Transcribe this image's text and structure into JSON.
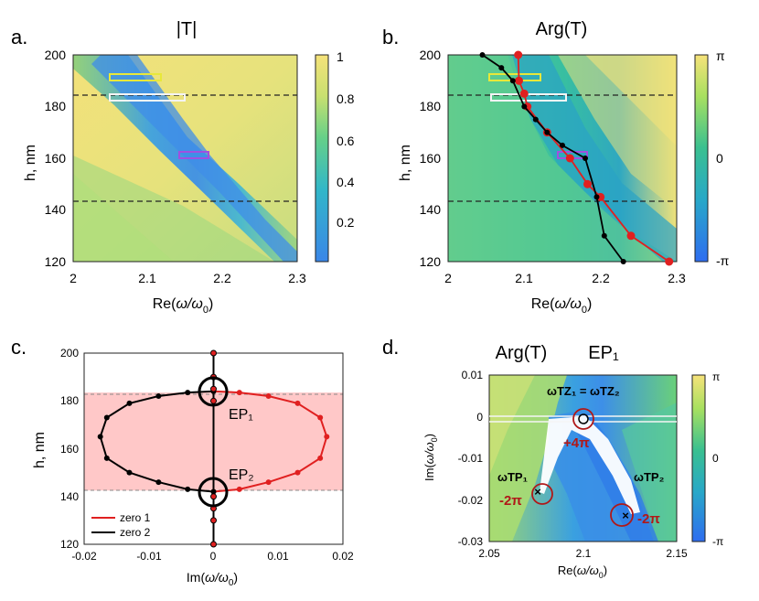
{
  "panels": {
    "a": {
      "label": "a.",
      "title": "|T|",
      "xlabel_prefix": "Re(",
      "xlabel_omega": "ω/ω",
      "xlabel_sub": "0",
      "xlabel_suffix": ")",
      "ylabel": "h, nm",
      "x_ticks": [
        "2",
        "2.1",
        "2.2",
        "2.3"
      ],
      "y_ticks": [
        "120",
        "140",
        "160",
        "180",
        "200"
      ],
      "colorbar_ticks": [
        "0.2",
        "0.4",
        "0.6",
        "0.8",
        "1"
      ]
    },
    "b": {
      "label": "b.",
      "title": "Arg(T)",
      "xlabel_prefix": "Re(",
      "xlabel_omega": "ω/ω",
      "xlabel_sub": "0",
      "xlabel_suffix": ")",
      "ylabel": "h, nm",
      "x_ticks": [
        "2",
        "2.1",
        "2.2",
        "2.3"
      ],
      "y_ticks": [
        "120",
        "140",
        "160",
        "180",
        "200"
      ],
      "colorbar_ticks": [
        "π",
        "0",
        "-π"
      ]
    },
    "c": {
      "label": "c.",
      "ylabel": "h, nm",
      "xlabel_prefix": "Im(",
      "xlabel_omega": "ω/ω",
      "xlabel_sub": "0",
      "xlabel_suffix": ")",
      "x_ticks": [
        "-0.02",
        "-0.01",
        "0",
        "0.01",
        "0.02"
      ],
      "y_ticks": [
        "120",
        "140",
        "160",
        "180",
        "200"
      ],
      "ep1": "EP₁",
      "ep2": "EP₂",
      "legend": [
        "zero 1",
        "zero 2"
      ]
    },
    "d": {
      "label": "d.",
      "title_left": "Arg(T)",
      "title_right": "EP₁",
      "xlabel_prefix": "Re(",
      "xlabel_omega": "ω/ω",
      "xlabel_sub": "0",
      "xlabel_suffix": ")",
      "ylabel_prefix": "Im(",
      "ylabel_omega": "ω/ω",
      "ylabel_sub": "0",
      "ylabel_suffix": ")",
      "x_ticks": [
        "2.05",
        "2.1",
        "2.15"
      ],
      "y_ticks": [
        "0.01",
        "0",
        "-0.01",
        "-0.02",
        "-0.03"
      ],
      "colorbar_ticks": [
        "π",
        "0",
        "-π"
      ],
      "tz_label": "ωTZ₁ = ωTZ₂",
      "tp1_label": "ωTP₁",
      "tp2_label": "ωTP₂",
      "winding_tz": "+4π",
      "winding_tp1": "-2π",
      "winding_tp2": "-2π"
    }
  },
  "chart_data": [
    {
      "panel": "a",
      "type": "heatmap",
      "title": "|T|",
      "xlabel": "Re(ω/ω0)",
      "ylabel": "h, nm",
      "xlim": [
        2,
        2.3
      ],
      "ylim": [
        120,
        200
      ],
      "colorbar": {
        "min": 0,
        "max": 1,
        "ticks": [
          0.2,
          0.4,
          0.6,
          0.8,
          1
        ]
      },
      "dashed_lines_h": [
        183.5,
        142.5
      ],
      "boxes": [
        {
          "color": "#e8e83a",
          "x": [
            2.05,
            2.09
          ],
          "y": [
            189.5,
            191.5
          ]
        },
        {
          "color": "#f0f0f0",
          "x": [
            2.05,
            2.12
          ],
          "y": [
            181.5,
            183.5
          ]
        },
        {
          "color": "#a050e0",
          "x": [
            2.135,
            2.175
          ],
          "y": [
            159.5,
            161.5
          ]
        }
      ],
      "colors": {
        "high": "#f3e27a",
        "mid": "#7fd07f",
        "low": "#3a86e8"
      }
    },
    {
      "panel": "b",
      "type": "heatmap",
      "title": "Arg(T)",
      "xlabel": "Re(ω/ω0)",
      "ylabel": "h, nm",
      "xlim": [
        2,
        2.3
      ],
      "ylim": [
        120,
        200
      ],
      "colorbar": {
        "min": "-π",
        "max": "π",
        "ticks": [
          "π",
          "0",
          "-π"
        ]
      },
      "dashed_lines_h": [
        183.5,
        142.5
      ],
      "series": [
        {
          "name": "zero 1",
          "color": "#e02020",
          "x": [
            2.092,
            2.093,
            2.1,
            2.104,
            2.13,
            2.16,
            2.183,
            2.2,
            2.24,
            2.29
          ],
          "y": [
            200,
            190,
            185,
            180,
            170,
            160,
            150,
            145,
            130,
            120
          ]
        },
        {
          "name": "zero 2",
          "color": "#000000",
          "x": [
            2.045,
            2.07,
            2.085,
            2.1,
            2.115,
            2.13,
            2.15,
            2.18,
            2.195,
            2.205,
            2.23
          ],
          "y": [
            200,
            195,
            190,
            180,
            175,
            170,
            165,
            160,
            145,
            130,
            120
          ]
        }
      ]
    },
    {
      "panel": "c",
      "type": "line",
      "xlabel": "Im(ω/ω0)",
      "ylabel": "h, nm",
      "xlim": [
        -0.02,
        0.02
      ],
      "ylim": [
        120,
        200
      ],
      "shaded_h_range": [
        142.5,
        183.5
      ],
      "exceptional_points": [
        {
          "name": "EP₁",
          "x": 0,
          "y": 184
        },
        {
          "name": "EP₂",
          "x": 0,
          "y": 142
        }
      ],
      "series": [
        {
          "name": "zero 1",
          "color": "#e02020",
          "x": [
            0,
            0.004,
            0.0085,
            0.013,
            0.0165,
            0.0175,
            0.0165,
            0.013,
            0.0085,
            0.004,
            0
          ],
          "y": [
            184,
            183.5,
            182,
            179,
            173,
            165,
            156,
            150,
            146,
            143,
            142
          ]
        },
        {
          "name": "zero 2",
          "color": "#000000",
          "x": [
            0,
            -0.004,
            -0.0085,
            -0.013,
            -0.0165,
            -0.0175,
            -0.0165,
            -0.013,
            -0.0085,
            -0.004,
            0
          ],
          "y": [
            184,
            183.5,
            182,
            179,
            173,
            165,
            156,
            150,
            146,
            143,
            142
          ]
        },
        {
          "name": "real zeros",
          "color": "#000000",
          "x": [
            0,
            0,
            0,
            0,
            0,
            0,
            0,
            0
          ],
          "y": [
            200,
            190,
            185,
            180,
            140,
            135,
            130,
            120
          ]
        }
      ],
      "legend_position": "bottom-left"
    },
    {
      "panel": "d",
      "type": "heatmap",
      "title": "Arg(T) EP₁",
      "xlabel": "Re(ω/ω0)",
      "ylabel": "Im(ω/ω0)",
      "xlim": [
        2.05,
        2.15
      ],
      "ylim": [
        -0.03,
        0.01
      ],
      "colorbar": {
        "min": "-π",
        "max": "π",
        "ticks": [
          "π",
          "0",
          "-π"
        ]
      },
      "points": [
        {
          "name": "ωTZ₁ = ωTZ₂",
          "x": 2.1,
          "y": 0.0,
          "marker": "circle",
          "winding": "+4π"
        },
        {
          "name": "ωTP₁",
          "x": 2.078,
          "y": -0.0185,
          "marker": "x",
          "winding": "-2π"
        },
        {
          "name": "ωTP₂",
          "x": 2.126,
          "y": -0.0235,
          "marker": "x",
          "winding": "-2π"
        }
      ]
    }
  ]
}
